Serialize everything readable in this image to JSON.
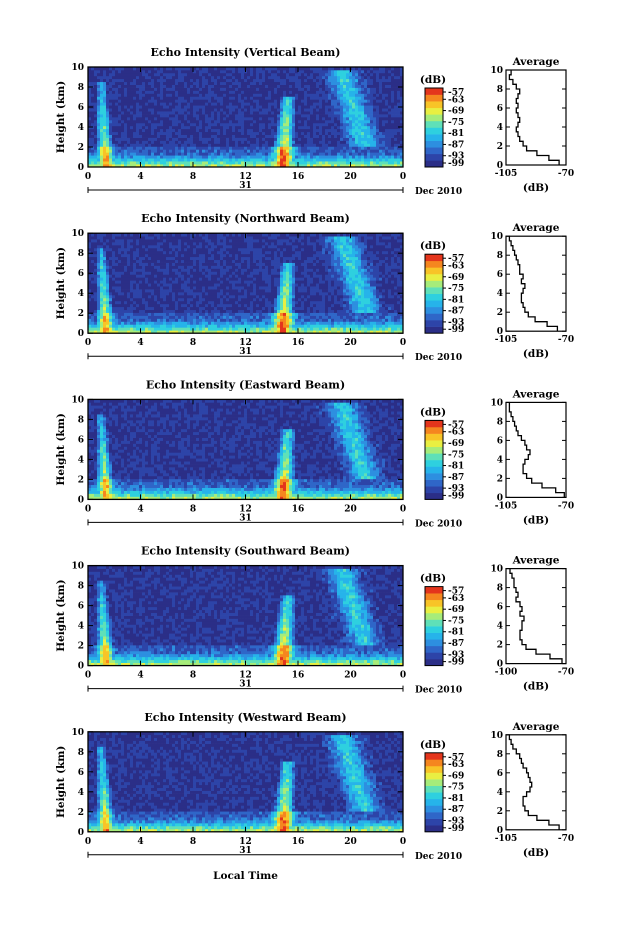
{
  "figure": {
    "x_label": "Local Time",
    "date_day": "31",
    "date_suffix": "Dec 2010",
    "colorbar_unit": "(dB)",
    "colorbar_ticks": [
      "-57",
      "-63",
      "-69",
      "-75",
      "-81",
      "-87",
      "-93",
      "-99"
    ],
    "profile_title": "Average",
    "profile_xlabel": "(dB)",
    "colormap": [
      "#2b2e87",
      "#2d44a8",
      "#2f66c8",
      "#2d8fe0",
      "#26b3ea",
      "#2ed0df",
      "#5fe0b8",
      "#a6ec7a",
      "#e9ef42",
      "#f8c427",
      "#f5861f",
      "#e4351c"
    ]
  },
  "chart_data": [
    {
      "type": "heatmap",
      "title": "Echo Intensity (Vertical Beam)",
      "ylabel": "Height (km)",
      "xlabel": "Local Time",
      "x_ticks": [
        "0",
        "4",
        "8",
        "12",
        "16",
        "20",
        "0"
      ],
      "y_ticks": [
        "0",
        "2",
        "4",
        "6",
        "8",
        "10"
      ],
      "xlim": [
        0,
        24
      ],
      "ylim": [
        0,
        10
      ],
      "colorbar": {
        "unit": "(dB)",
        "range": [
          -99,
          -57
        ],
        "ticks": [
          -57,
          -63,
          -69,
          -75,
          -81,
          -87,
          -93,
          -99
        ]
      },
      "profile": {
        "title": "Average",
        "xlabel": "(dB)",
        "x_ticks": [
          "-105",
          "-70"
        ],
        "xlim": [
          -105,
          -70
        ],
        "y_ticks": [
          "0",
          "2",
          "4",
          "6",
          "8",
          "10"
        ],
        "ylim": [
          0,
          10
        ],
        "height": [
          0,
          0.5,
          1,
          1.5,
          2,
          2.5,
          3,
          3.5,
          4,
          4.5,
          5,
          5.5,
          6,
          6.5,
          7,
          7.5,
          8,
          8.5,
          9,
          9.5
        ],
        "value": [
          -74,
          -80,
          -87,
          -93,
          -95,
          -97,
          -98,
          -99,
          -98,
          -97,
          -98,
          -99,
          -98,
          -99,
          -98,
          -97,
          -99,
          -101,
          -103,
          -102
        ]
      }
    },
    {
      "type": "heatmap",
      "title": "Echo Intensity (Northward Beam)",
      "ylabel": "Height (km)",
      "xlabel": "Local Time",
      "x_ticks": [
        "0",
        "4",
        "8",
        "12",
        "16",
        "20",
        "0"
      ],
      "y_ticks": [
        "0",
        "2",
        "4",
        "6",
        "8",
        "10"
      ],
      "xlim": [
        0,
        24
      ],
      "ylim": [
        0,
        10
      ],
      "colorbar": {
        "unit": "(dB)",
        "range": [
          -99,
          -57
        ],
        "ticks": [
          -57,
          -63,
          -69,
          -75,
          -81,
          -87,
          -93,
          -99
        ]
      },
      "profile": {
        "title": "Average",
        "xlabel": "(dB)",
        "x_ticks": [
          "-105",
          "-70"
        ],
        "xlim": [
          -105,
          -70
        ],
        "y_ticks": [
          "0",
          "2",
          "4",
          "6",
          "8",
          "10"
        ],
        "ylim": [
          0,
          10
        ],
        "height": [
          0,
          0.5,
          1,
          1.5,
          2,
          2.5,
          3,
          3.5,
          4,
          4.5,
          5,
          5.5,
          6,
          6.5,
          7,
          7.5,
          8,
          8.5,
          9,
          9.5
        ],
        "value": [
          -75,
          -81,
          -88,
          -92,
          -94,
          -95,
          -96,
          -96,
          -95,
          -94,
          -96,
          -95,
          -97,
          -97,
          -98,
          -99,
          -100,
          -101,
          -102,
          -103
        ]
      }
    },
    {
      "type": "heatmap",
      "title": "Echo Intensity (Eastward Beam)",
      "ylabel": "Height (km)",
      "xlabel": "Local Time",
      "x_ticks": [
        "0",
        "4",
        "8",
        "12",
        "16",
        "20",
        "0"
      ],
      "y_ticks": [
        "0",
        "2",
        "4",
        "6",
        "8",
        "10"
      ],
      "xlim": [
        0,
        24
      ],
      "ylim": [
        0,
        10
      ],
      "colorbar": {
        "unit": "(dB)",
        "range": [
          -99,
          -57
        ],
        "ticks": [
          -57,
          -63,
          -69,
          -75,
          -81,
          -87,
          -93,
          -99
        ]
      },
      "profile": {
        "title": "Average",
        "xlabel": "(dB)",
        "x_ticks": [
          "-105",
          "-70"
        ],
        "xlim": [
          -105,
          -70
        ],
        "y_ticks": [
          "0",
          "2",
          "4",
          "6",
          "8",
          "10"
        ],
        "ylim": [
          0,
          10
        ],
        "height": [
          0,
          0.5,
          1,
          1.5,
          2,
          2.5,
          3,
          3.5,
          4,
          4.5,
          5,
          5.5,
          6,
          6.5,
          7,
          7.5,
          8,
          8.5,
          9,
          9.5
        ],
        "value": [
          -71,
          -76,
          -84,
          -90,
          -93,
          -95,
          -95,
          -94,
          -92,
          -91,
          -93,
          -94,
          -96,
          -98,
          -99,
          -100,
          -101,
          -102,
          -103,
          -103
        ]
      }
    },
    {
      "type": "heatmap",
      "title": "Echo Intensity (Southward Beam)",
      "ylabel": "Height (km)",
      "xlabel": "Local Time",
      "x_ticks": [
        "0",
        "4",
        "8",
        "12",
        "16",
        "20",
        "0"
      ],
      "y_ticks": [
        "0",
        "2",
        "4",
        "6",
        "8",
        "10"
      ],
      "xlim": [
        0,
        24
      ],
      "ylim": [
        0,
        10
      ],
      "colorbar": {
        "unit": "(dB)",
        "range": [
          -99,
          -57
        ],
        "ticks": [
          -57,
          -63,
          -69,
          -75,
          -81,
          -87,
          -93,
          -99
        ]
      },
      "profile": {
        "title": "Average",
        "xlabel": "(dB)",
        "x_ticks": [
          "-100",
          "-70"
        ],
        "xlim": [
          -100,
          -70
        ],
        "y_ticks": [
          "0",
          "2",
          "4",
          "6",
          "8",
          "10"
        ],
        "ylim": [
          0,
          10
        ],
        "height": [
          0,
          0.5,
          1,
          1.5,
          2,
          2.5,
          3,
          3.5,
          4,
          4.5,
          5,
          5.5,
          6,
          6.5,
          7,
          7.5,
          8,
          8.5,
          9,
          9.5
        ],
        "value": [
          -72,
          -78,
          -85,
          -90,
          -92,
          -93,
          -93,
          -92,
          -92,
          -91,
          -93,
          -92,
          -93,
          -95,
          -94,
          -95,
          -96,
          -96,
          -97,
          -98
        ]
      }
    },
    {
      "type": "heatmap",
      "title": "Echo Intensity (Westward Beam)",
      "ylabel": "Height (km)",
      "xlabel": "Local Time",
      "x_ticks": [
        "0",
        "4",
        "8",
        "12",
        "16",
        "20",
        "0"
      ],
      "y_ticks": [
        "0",
        "2",
        "4",
        "6",
        "8",
        "10"
      ],
      "xlim": [
        0,
        24
      ],
      "ylim": [
        0,
        10
      ],
      "colorbar": {
        "unit": "(dB)",
        "range": [
          -99,
          -57
        ],
        "ticks": [
          -57,
          -63,
          -69,
          -75,
          -81,
          -87,
          -93,
          -99
        ]
      },
      "profile": {
        "title": "Average",
        "xlabel": "(dB)",
        "x_ticks": [
          "-105",
          "-70"
        ],
        "xlim": [
          -105,
          -70
        ],
        "y_ticks": [
          "0",
          "2",
          "4",
          "6",
          "8",
          "10"
        ],
        "ylim": [
          0,
          10
        ],
        "height": [
          0,
          0.5,
          1,
          1.5,
          2,
          2.5,
          3,
          3.5,
          4,
          4.5,
          5,
          5.5,
          6,
          6.5,
          7,
          7.5,
          8,
          8.5,
          9,
          9.5
        ],
        "value": [
          -74,
          -80,
          -87,
          -92,
          -94,
          -95,
          -95,
          -93,
          -91,
          -90,
          -91,
          -92,
          -93,
          -95,
          -96,
          -97,
          -99,
          -101,
          -102,
          -103
        ]
      }
    }
  ]
}
